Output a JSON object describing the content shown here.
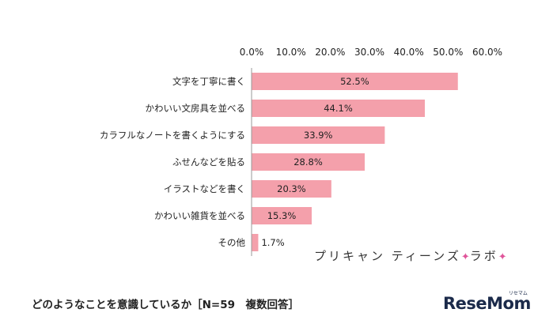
{
  "chart_data": {
    "type": "bar",
    "orientation": "horizontal",
    "categories": [
      "文字を丁寧に書く",
      "かわいい文房具を並べる",
      "カラフルなノートを書くようにする",
      "ふせんなどを貼る",
      "イラストなどを書く",
      "かわいい雑貨を並べる",
      "その他"
    ],
    "values": [
      52.5,
      44.1,
      33.9,
      28.8,
      20.3,
      15.3,
      1.7
    ],
    "data_labels": [
      "52.5%",
      "44.1%",
      "33.9%",
      "28.8%",
      "20.3%",
      "15.3%",
      "1.7%"
    ],
    "xlim": [
      0,
      60
    ],
    "xticks": [
      "0.0%",
      "10.0%",
      "20.0%",
      "30.0%",
      "40.0%",
      "50.0%",
      "60.0%"
    ],
    "axis_position": "top",
    "grid": false,
    "bar_color": "#f4a0ab",
    "title": "どのようなことを意識しているか［N=59　複数回答］"
  },
  "branding": {
    "watermark_main": "プリキャン ティーンズ",
    "watermark_star": "✦",
    "watermark_suffix": "ラボ",
    "logo": "ReseMom",
    "logo_kana": "リセマム"
  }
}
